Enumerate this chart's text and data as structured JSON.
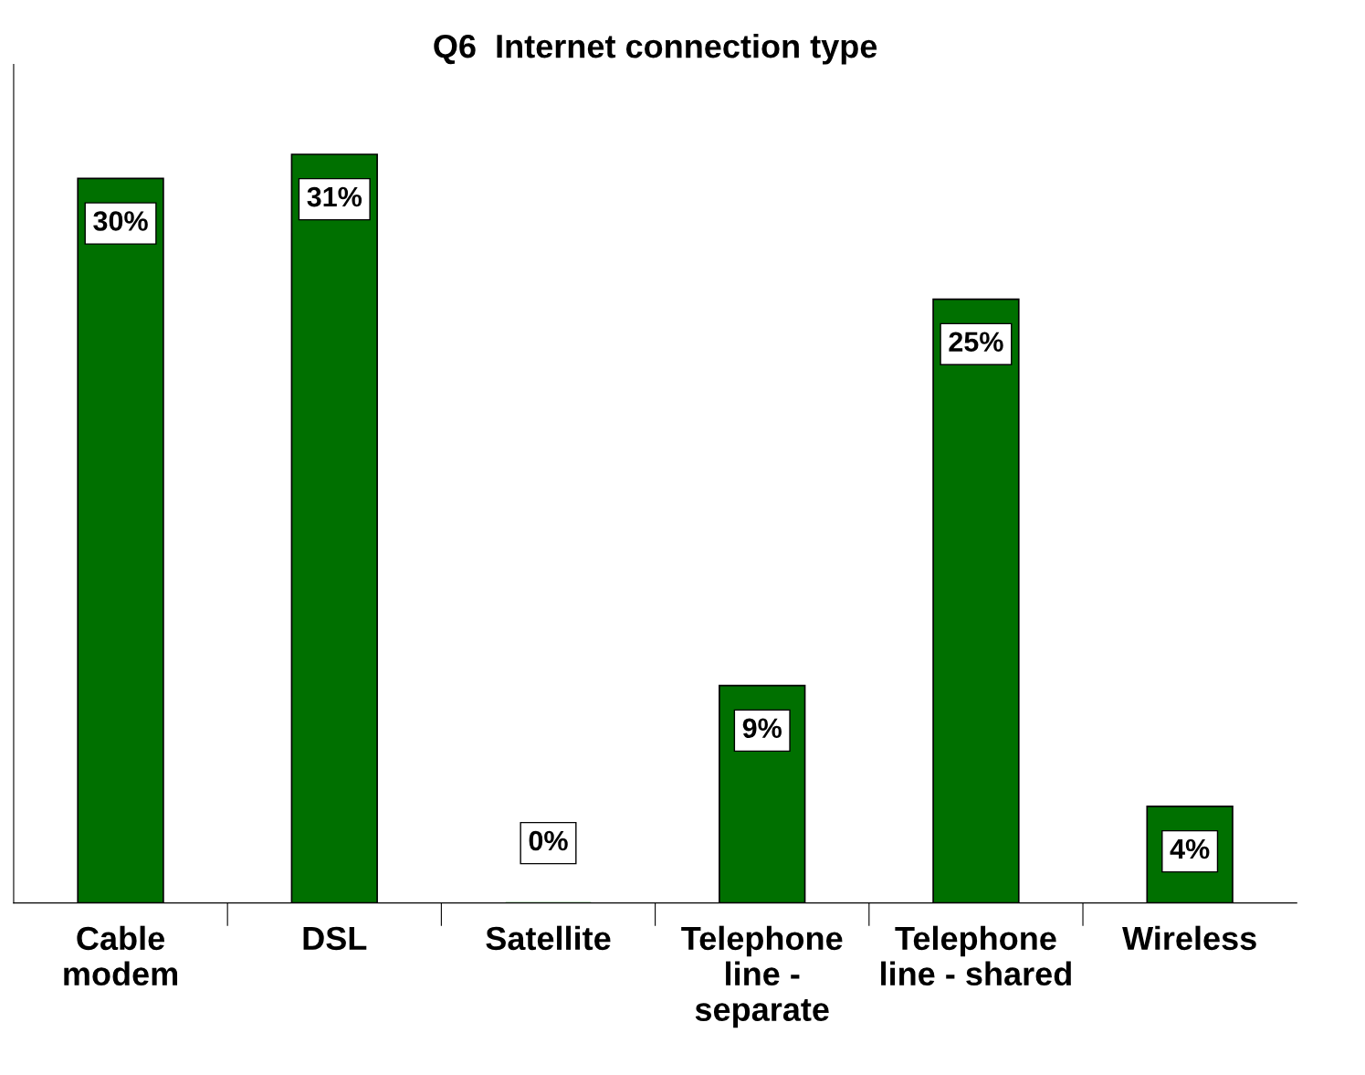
{
  "chart_data": {
    "type": "bar",
    "title": "Q6  Internet connection type",
    "categories": [
      "Cable\nmodem",
      "DSL",
      "Satellite",
      "Telephone\nline -\nseparate",
      "Telephone\nline - shared",
      "Wireless"
    ],
    "values": [
      30,
      31,
      0,
      9,
      25,
      4
    ],
    "value_labels": [
      "30%",
      "31%",
      "0%",
      "9%",
      "25%",
      "4%"
    ],
    "color": "#007000",
    "grid": false,
    "legend": false
  }
}
